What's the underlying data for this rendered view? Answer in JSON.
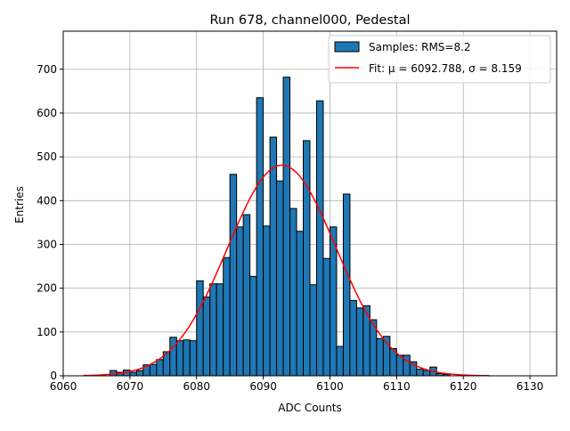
{
  "chart_data": {
    "type": "bar",
    "title": "Run 678, channel000, Pedestal",
    "xlabel": "ADC Counts",
    "ylabel": "Entries",
    "xlim": [
      6060,
      6134
    ],
    "ylim": [
      0,
      787
    ],
    "xticks": [
      6060,
      6070,
      6080,
      6090,
      6100,
      6110,
      6120,
      6130
    ],
    "yticks": [
      0,
      100,
      200,
      300,
      400,
      500,
      600,
      700
    ],
    "grid": true,
    "legend_position": "top-right",
    "bin_edges_start": 6063,
    "bin_width": 1,
    "counts": [
      0,
      0,
      0,
      0,
      12,
      8,
      13,
      8,
      12,
      25,
      26,
      37,
      55,
      88,
      80,
      82,
      80,
      217,
      180,
      210,
      210,
      270,
      460,
      340,
      368,
      227,
      635,
      342,
      545,
      445,
      682,
      382,
      330,
      537,
      208,
      628,
      268,
      340,
      67,
      415,
      172,
      155,
      160,
      128,
      85,
      90,
      62,
      47,
      47,
      32,
      15,
      12,
      20,
      5,
      3,
      0,
      0,
      0,
      0,
      0,
      0
    ],
    "series": [
      {
        "name": "Samples: RMS=8.2",
        "kind": "histogram",
        "color": "#1f77b4",
        "edge_color": "#000000"
      },
      {
        "name": "Fit: μ = 6092.788, σ = 8.159",
        "kind": "gaussian",
        "mu": 6092.788,
        "sigma": 8.159,
        "amplitude": 481,
        "x_range": [
          6063,
          6124
        ],
        "color": "#ff0000"
      }
    ]
  }
}
